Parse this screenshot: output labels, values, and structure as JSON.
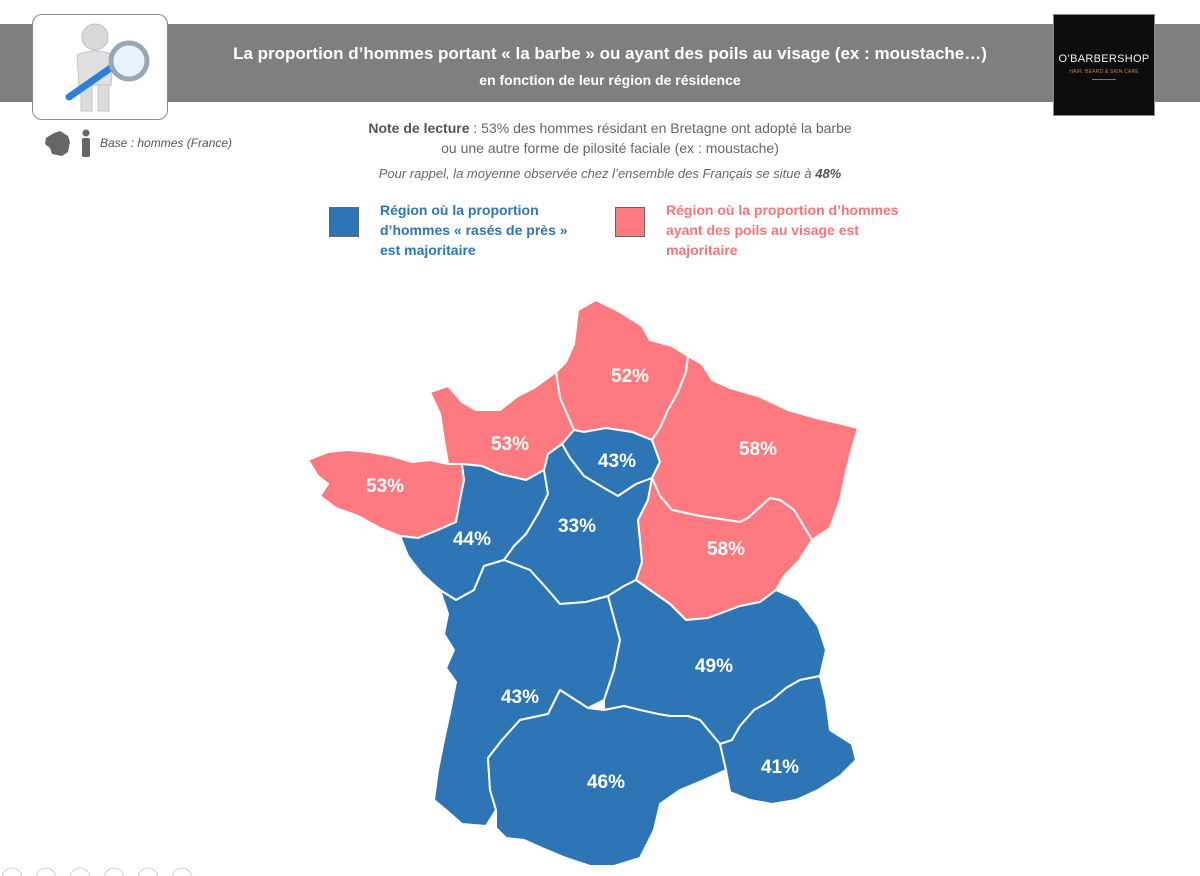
{
  "header": {
    "title": "La proportion d’hommes portant « la barbe » ou ayant des poils au visage (ex : moustache…)",
    "subtitle": "en fonction de leur région de résidence"
  },
  "brand": {
    "name": "O’BARBERSHOP",
    "tagline": "HAIR, BEARD & SKIN CARE"
  },
  "base": {
    "text": "Base : hommes (France)"
  },
  "note": {
    "lead": "Note de lecture",
    "line1": " : 53% des hommes résidant en Bretagne ont adopté la barbe",
    "line2": "ou une autre forme de pilosité faciale (ex : moustache)",
    "reminder": "Pour rappel, la moyenne observée chez l’ensemble des Français se situe à ",
    "reminder_value": "48%"
  },
  "legend": {
    "blue": {
      "label": "Région où la proportion d’hommes « rasés de près » est majoritaire",
      "color": "#2e75b6"
    },
    "pink": {
      "label": "Région où la proportion d’hommes ayant des poils au visage est majoritaire",
      "color": "#fd7b80"
    }
  },
  "regions": [
    {
      "id": "hauts-de-france",
      "value": "52%",
      "group": "pink"
    },
    {
      "id": "normandie",
      "value": "53%",
      "group": "pink"
    },
    {
      "id": "ile-de-france",
      "value": "43%",
      "group": "blue"
    },
    {
      "id": "grand-est",
      "value": "58%",
      "group": "pink"
    },
    {
      "id": "bretagne",
      "value": "53%",
      "group": "pink"
    },
    {
      "id": "pays-de-la-loire",
      "value": "44%",
      "group": "blue"
    },
    {
      "id": "centre-val-de-loire",
      "value": "33%",
      "group": "blue"
    },
    {
      "id": "bourgogne-franche-comte",
      "value": "58%",
      "group": "pink"
    },
    {
      "id": "nouvelle-aquitaine",
      "value": "43%",
      "group": "blue"
    },
    {
      "id": "auvergne-rhone-alpes",
      "value": "49%",
      "group": "blue"
    },
    {
      "id": "occitanie",
      "value": "46%",
      "group": "blue"
    },
    {
      "id": "provence-alpes-cote-d-azur",
      "value": "41%",
      "group": "blue"
    }
  ]
}
